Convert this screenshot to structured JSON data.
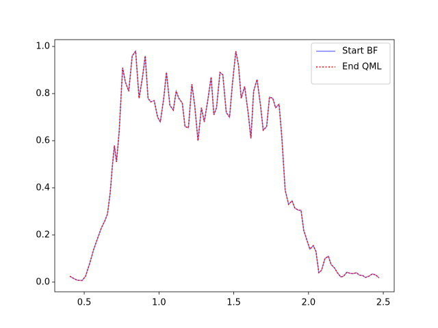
{
  "chart_data": {
    "type": "line",
    "x": [
      0.404,
      0.431,
      0.454,
      0.486,
      0.509,
      0.537,
      0.564,
      0.592,
      0.615,
      0.638,
      0.656,
      0.674,
      0.688,
      0.702,
      0.716,
      0.734,
      0.757,
      0.775,
      0.798,
      0.821,
      0.844,
      0.867,
      0.89,
      0.908,
      0.927,
      0.945,
      0.968,
      0.991,
      1.009,
      1.032,
      1.05,
      1.073,
      1.096,
      1.115,
      1.133,
      1.156,
      1.174,
      1.197,
      1.22,
      1.239,
      1.261,
      1.284,
      1.303,
      1.326,
      1.349,
      1.367,
      1.385,
      1.408,
      1.427,
      1.45,
      1.472,
      1.491,
      1.514,
      1.532,
      1.55,
      1.573,
      1.596,
      1.615,
      1.633,
      1.656,
      1.679,
      1.697,
      1.72,
      1.739,
      1.761,
      1.78,
      1.803,
      1.821,
      1.844,
      1.867,
      1.89,
      1.908,
      1.931,
      1.95,
      1.968,
      1.991,
      2.009,
      2.032,
      2.05,
      2.069,
      2.087,
      2.11,
      2.133,
      2.151,
      2.174,
      2.193,
      2.216,
      2.234,
      2.257,
      2.28,
      2.298,
      2.321,
      2.339,
      2.362,
      2.381,
      2.404,
      2.427,
      2.45,
      2.472
    ],
    "series": [
      {
        "name": "Start BF",
        "color": "#8080ff",
        "dash": "solid",
        "values": [
          0.025,
          0.015,
          0.008,
          0.007,
          0.025,
          0.08,
          0.14,
          0.19,
          0.23,
          0.26,
          0.29,
          0.38,
          0.49,
          0.58,
          0.51,
          0.64,
          0.91,
          0.85,
          0.81,
          0.96,
          0.98,
          0.78,
          0.87,
          0.96,
          0.78,
          0.765,
          0.77,
          0.7,
          0.68,
          0.78,
          0.89,
          0.75,
          0.73,
          0.81,
          0.78,
          0.76,
          0.66,
          0.655,
          0.84,
          0.75,
          0.6,
          0.74,
          0.68,
          0.77,
          0.87,
          0.71,
          0.74,
          0.89,
          0.88,
          0.72,
          0.7,
          0.84,
          0.98,
          0.92,
          0.78,
          0.83,
          0.72,
          0.61,
          0.81,
          0.86,
          0.75,
          0.645,
          0.66,
          0.785,
          0.78,
          0.74,
          0.755,
          0.62,
          0.39,
          0.33,
          0.345,
          0.315,
          0.305,
          0.305,
          0.22,
          0.175,
          0.14,
          0.155,
          0.13,
          0.04,
          0.05,
          0.1,
          0.11,
          0.075,
          0.06,
          0.04,
          0.022,
          0.025,
          0.042,
          0.037,
          0.036,
          0.04,
          0.03,
          0.028,
          0.02,
          0.025,
          0.035,
          0.03,
          0.018
        ]
      },
      {
        "name": "End QML",
        "color": "#ff0000",
        "dash": "dotted",
        "values": [
          0.025,
          0.015,
          0.008,
          0.007,
          0.025,
          0.08,
          0.14,
          0.19,
          0.23,
          0.26,
          0.29,
          0.38,
          0.49,
          0.58,
          0.51,
          0.64,
          0.91,
          0.85,
          0.81,
          0.96,
          0.98,
          0.78,
          0.87,
          0.96,
          0.78,
          0.765,
          0.77,
          0.7,
          0.68,
          0.78,
          0.89,
          0.75,
          0.73,
          0.81,
          0.78,
          0.76,
          0.66,
          0.655,
          0.84,
          0.75,
          0.6,
          0.74,
          0.68,
          0.77,
          0.87,
          0.71,
          0.74,
          0.89,
          0.88,
          0.72,
          0.7,
          0.84,
          0.98,
          0.92,
          0.78,
          0.83,
          0.72,
          0.61,
          0.81,
          0.86,
          0.75,
          0.645,
          0.66,
          0.785,
          0.78,
          0.74,
          0.755,
          0.62,
          0.39,
          0.33,
          0.345,
          0.315,
          0.305,
          0.305,
          0.22,
          0.175,
          0.14,
          0.155,
          0.13,
          0.04,
          0.05,
          0.1,
          0.11,
          0.075,
          0.06,
          0.04,
          0.022,
          0.025,
          0.042,
          0.037,
          0.036,
          0.04,
          0.03,
          0.028,
          0.02,
          0.025,
          0.035,
          0.03,
          0.018
        ]
      }
    ],
    "xlim": [
      0.303,
      2.573
    ],
    "ylim": [
      -0.041,
      1.029
    ],
    "xticks": [
      0.5,
      {
        "value": 1,
        "label": "1.0"
      },
      1.5,
      {
        "value": 2,
        "label": "2.0"
      },
      2.5
    ],
    "yticks": [
      {
        "value": 0,
        "label": "0.0"
      },
      0.2,
      0.4,
      0.6,
      0.8,
      {
        "value": 1,
        "label": "1.0"
      }
    ],
    "legend": "upper right"
  }
}
